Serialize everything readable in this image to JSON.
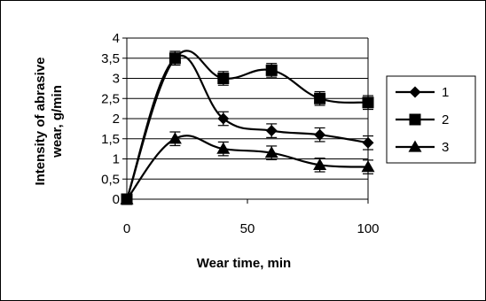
{
  "chart_data": {
    "type": "line",
    "title": "",
    "xlabel": "Wear time, min",
    "ylabel_lines": [
      "Intensity of abrasive",
      "wear, g/min"
    ],
    "xlim": [
      0,
      100
    ],
    "ylim": [
      0,
      4
    ],
    "x_ticks": [
      0,
      50,
      100
    ],
    "y_ticks": [
      0,
      0.5,
      1,
      1.5,
      2,
      2.5,
      3,
      3.5,
      4
    ],
    "y_tick_labels": [
      "0",
      "0,5",
      "1",
      "1,5",
      "2",
      "2,5",
      "3",
      "3,5",
      "4"
    ],
    "grid": "horizontal",
    "legend_position": "right",
    "x": [
      0,
      20,
      40,
      60,
      80,
      100
    ],
    "error": 0.17,
    "series": [
      {
        "name": "1",
        "marker": "diamond",
        "values": [
          0,
          3.5,
          2.0,
          1.7,
          1.6,
          1.4
        ]
      },
      {
        "name": "2",
        "marker": "square",
        "values": [
          0,
          3.5,
          3.0,
          3.2,
          2.5,
          2.4
        ]
      },
      {
        "name": "3",
        "marker": "triangle",
        "values": [
          0,
          1.5,
          1.25,
          1.15,
          0.85,
          0.8
        ]
      }
    ]
  }
}
